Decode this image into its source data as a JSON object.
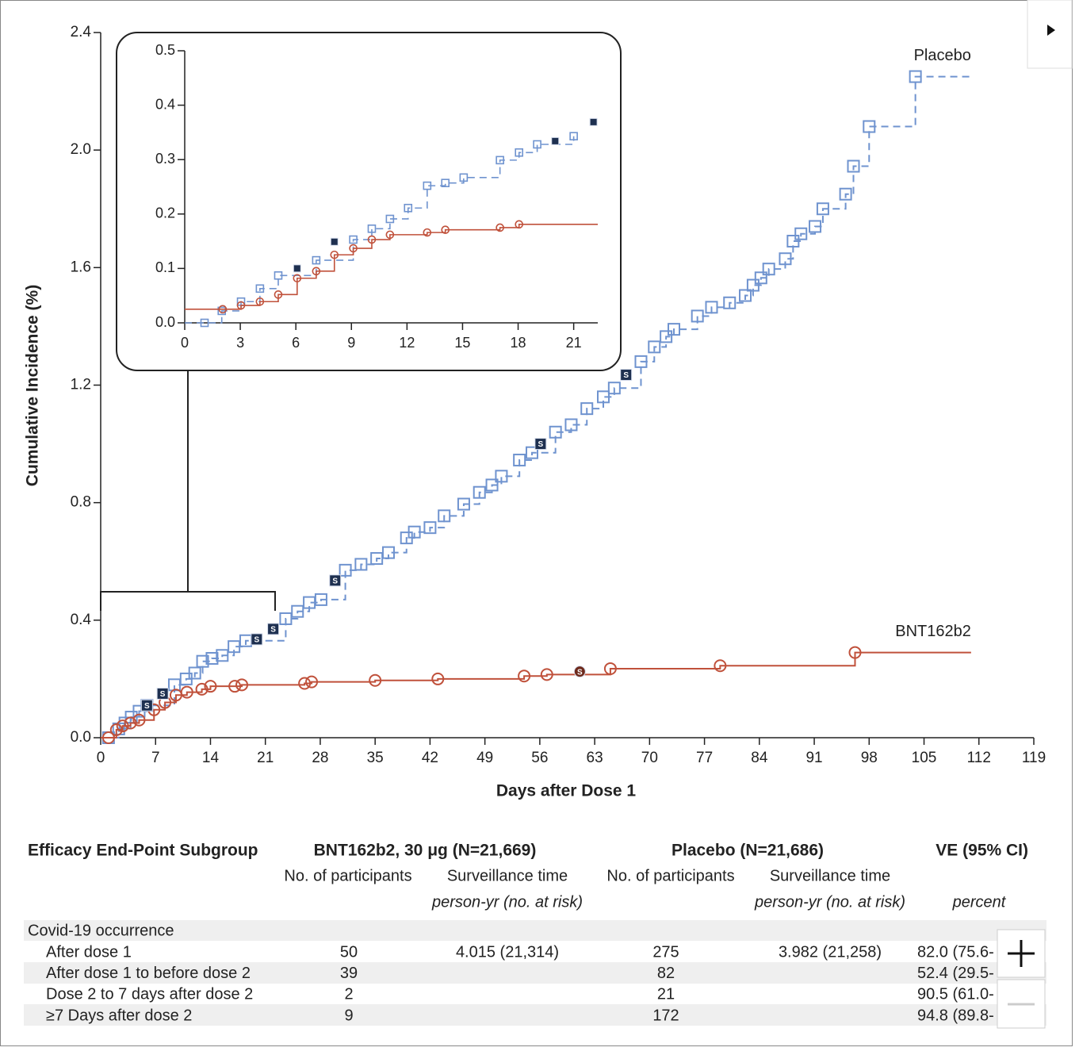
{
  "chart_data": [
    {
      "type": "line",
      "xlabel": "Days after Dose 1",
      "ylabel": "Cumulative Incidence (%)",
      "xlim": [
        0,
        119
      ],
      "ylim": [
        0,
        2.4
      ],
      "xticks": [
        0,
        7,
        14,
        21,
        28,
        35,
        42,
        49,
        56,
        63,
        70,
        77,
        84,
        91,
        98,
        105,
        112,
        119
      ],
      "yticks": [
        {
          "value": 0,
          "label": "0.0"
        },
        0.4,
        0.8,
        1.2,
        1.6,
        {
          "value": 2,
          "label": "2.0"
        },
        2.4
      ],
      "series": [
        {
          "name": "Placebo",
          "color": "#6f93cf",
          "marker": "square",
          "dash": true,
          "end_x": 111,
          "x": [
            1,
            2.3,
            3.1,
            3.9,
            4.9,
            5.9,
            9.4,
            10.9,
            12,
            13,
            14.2,
            15.5,
            17,
            18.5,
            23.6,
            25.1,
            26.6,
            28.1,
            31.2,
            33.2,
            35.2,
            36.7,
            39,
            40,
            42,
            43.8,
            46.3,
            48.3,
            49.9,
            51.1,
            53.4,
            55,
            58,
            60,
            62,
            64.1,
            65.5,
            68.9,
            70.6,
            72.1,
            73.1,
            76.1,
            77.9,
            80.2,
            82.2,
            83.2,
            84.2,
            85.2,
            87.3,
            88.3,
            89.3,
            91.1,
            92.1,
            95,
            96,
            98,
            103.9
          ],
          "values": [
            0,
            0.03,
            0.05,
            0.07,
            0.09,
            0.11,
            0.18,
            0.2,
            0.22,
            0.26,
            0.27,
            0.28,
            0.31,
            0.33,
            0.405,
            0.43,
            0.46,
            0.47,
            0.57,
            0.59,
            0.61,
            0.63,
            0.68,
            0.7,
            0.715,
            0.755,
            0.795,
            0.835,
            0.86,
            0.89,
            0.945,
            0.97,
            1.04,
            1.065,
            1.12,
            1.16,
            1.19,
            1.28,
            1.33,
            1.365,
            1.39,
            1.435,
            1.465,
            1.48,
            1.505,
            1.54,
            1.565,
            1.595,
            1.63,
            1.69,
            1.715,
            1.74,
            1.8,
            1.85,
            1.945,
            2.08,
            2.25
          ]
        },
        {
          "name": "BNT162b2",
          "color": "#c0513b",
          "marker": "circle",
          "dash": false,
          "end_x": 111,
          "x": [
            1,
            2,
            2.8,
            3.8,
            4.9,
            6.8,
            8.2,
            9.6,
            11,
            12.9,
            14,
            17.1,
            18,
            26,
            26.9,
            35,
            43,
            54,
            56.9,
            65,
            79,
            96.2
          ],
          "values": [
            0,
            0.027,
            0.04,
            0.05,
            0.06,
            0.095,
            0.12,
            0.145,
            0.155,
            0.165,
            0.175,
            0.175,
            0.18,
            0.185,
            0.19,
            0.195,
            0.2,
            0.21,
            0.215,
            0.235,
            0.245,
            0.29
          ]
        },
        {
          "name": "S",
          "color": "#1e3050",
          "marker": "square",
          "line": false,
          "x": [
            5.9,
            7.9,
            19.9,
            22,
            29.9,
            56.1,
            67
          ],
          "values": [
            0.11,
            0.15,
            0.335,
            0.37,
            0.535,
            1.0,
            1.235
          ]
        },
        {
          "name": "S",
          "color": "#6e2a1c",
          "marker": "circle",
          "line": false,
          "x": [
            61.1
          ],
          "values": [
            0.225
          ]
        }
      ]
    },
    {
      "type": "line",
      "xlim": [
        0,
        22.3
      ],
      "ylim": [
        0,
        0.5
      ],
      "xticks": [
        0,
        3,
        6,
        9,
        12,
        15,
        18,
        21
      ],
      "yticks": [
        {
          "value": 0,
          "label": "0.0"
        },
        0.1,
        0.2,
        0.3,
        0.4,
        0.5
      ],
      "series": [
        {
          "color": "#6f93cf",
          "marker": "square",
          "dash": true,
          "x": [
            1.07,
            2,
            3.04,
            4.06,
            5.05,
            7.1,
            9.1,
            10.1,
            11.08,
            12.06,
            13.09,
            14.07,
            15.06,
            17.02,
            18.05,
            19.03,
            21
          ],
          "values": [
            0,
            0.022,
            0.039,
            0.063,
            0.087,
            0.115,
            0.153,
            0.173,
            0.191,
            0.211,
            0.252,
            0.257,
            0.267,
            0.299,
            0.313,
            0.328,
            0.343
          ]
        },
        {
          "color": "#c0513b",
          "marker": "circle",
          "dash": false,
          "end_x": 22.3,
          "x": [
            2.05,
            3.04,
            4.06,
            5.05,
            6.07,
            7.1,
            8.08,
            9.1,
            10.1,
            11.08,
            13.09,
            14.07,
            17.02,
            18.05
          ],
          "values": [
            0.025,
            0.032,
            0.039,
            0.052,
            0.082,
            0.095,
            0.125,
            0.137,
            0.153,
            0.162,
            0.166,
            0.171,
            0.175,
            0.181
          ]
        },
        {
          "color": "#1e3050",
          "marker": "square",
          "line": false,
          "x": [
            6.07,
            8.08,
            20,
            22.07
          ],
          "values": [
            0.1,
            0.149,
            0.334,
            0.369
          ]
        }
      ]
    }
  ],
  "table": {
    "header": [
      "Efficacy End-Point Subgroup",
      "BNT162b2, 30 μg (N=21,669)",
      "Placebo (N=21,686)",
      "VE (95% CI)"
    ],
    "subheader": [
      "No. of participants",
      "Surveillance time",
      "No. of participants",
      "Surveillance time"
    ],
    "units": [
      "person-yr (no. at risk)",
      "person-yr (no. at risk)",
      "percent"
    ],
    "group": "Covid-19 occurrence",
    "rows": [
      {
        "label": "After dose 1",
        "bnt_n": "50",
        "bnt_time": "4.015 (21,314)",
        "placebo_n": "275",
        "placebo_time": "3.982 (21,258)",
        "ve": "82.0 (75.6-"
      },
      {
        "label": "After dose 1 to before dose 2",
        "bnt_n": "39",
        "placebo_n": "82",
        "ve": "52.4 (29.5-"
      },
      {
        "label": "Dose 2 to 7 days after dose 2",
        "bnt_n": "2",
        "placebo_n": "21",
        "ve": "90.5 (61.0-"
      },
      {
        "label": "≥7 Days after dose 2",
        "bnt_n": "9",
        "placebo_n": "172",
        "ve": "94.8 (89.8-"
      }
    ]
  }
}
